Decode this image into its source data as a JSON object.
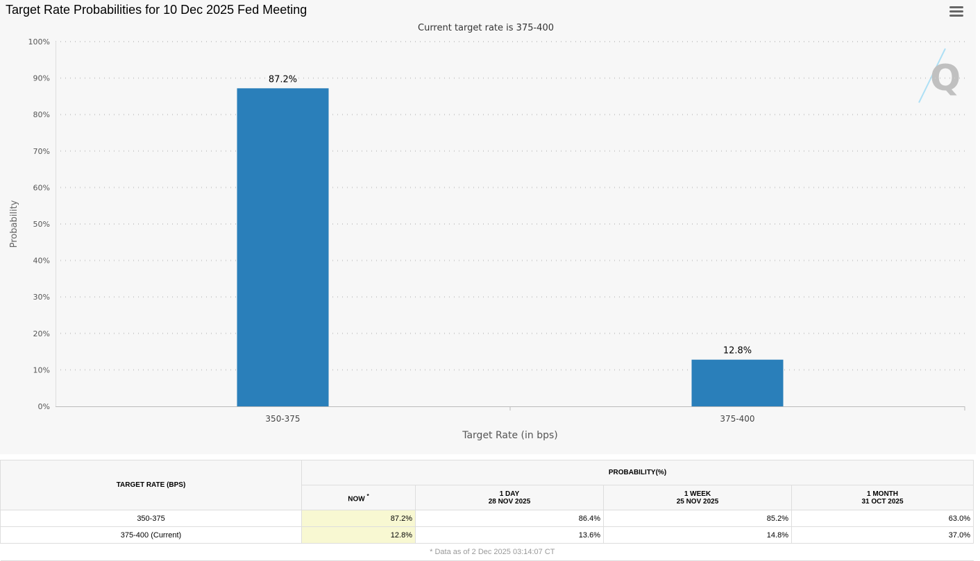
{
  "chart_data": {
    "type": "bar",
    "title": "Target Rate Probabilities for 10 Dec 2025 Fed Meeting",
    "subtitle": "Current target rate is 375-400",
    "xlabel": "Target Rate (in bps)",
    "ylabel": "Probability",
    "categories": [
      "350-375",
      "375-400"
    ],
    "values": [
      87.2,
      12.8
    ],
    "data_labels": [
      "87.2%",
      "12.8%"
    ],
    "ylim": [
      0,
      100
    ],
    "yticks": [
      "0%",
      "10%",
      "20%",
      "30%",
      "40%",
      "50%",
      "60%",
      "70%",
      "80%",
      "90%",
      "100%"
    ],
    "grid": true,
    "color": "#2a7fba"
  },
  "menu_icon": "hamburger-icon",
  "table": {
    "col_target": "TARGET RATE (BPS)",
    "col_prob": "PROBABILITY(%)",
    "subcols": [
      {
        "label": "NOW",
        "note": "*",
        "date": ""
      },
      {
        "label": "1 DAY",
        "date": "28 NOV 2025"
      },
      {
        "label": "1 WEEK",
        "date": "25 NOV 2025"
      },
      {
        "label": "1 MONTH",
        "date": "31 OCT 2025"
      }
    ],
    "rows": [
      {
        "rate": "350-375",
        "values": [
          "87.2%",
          "86.4%",
          "85.2%",
          "63.0%"
        ]
      },
      {
        "rate": "375-400 (Current)",
        "values": [
          "12.8%",
          "13.6%",
          "14.8%",
          "37.0%"
        ]
      }
    ],
    "footnote": "* Data as of 2 Dec 2025 03:14:07 CT"
  }
}
